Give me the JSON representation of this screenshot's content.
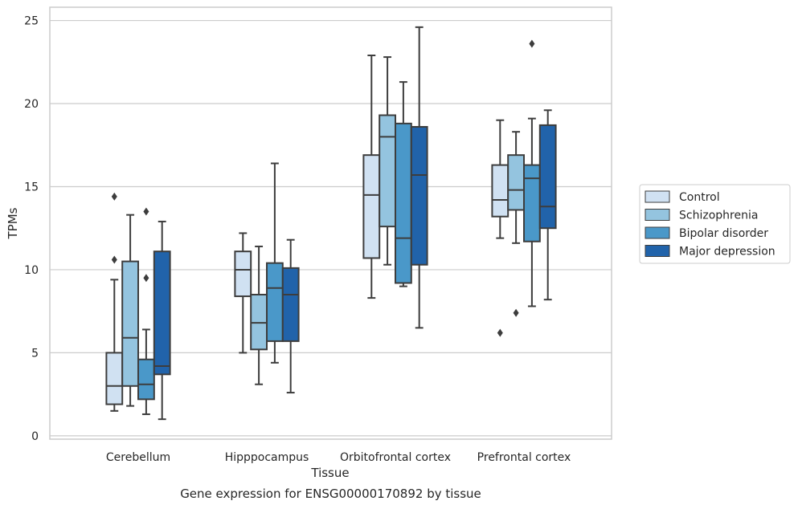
{
  "caption": "Gene expression for ENSG00000170892 by tissue",
  "chart_data": {
    "type": "box",
    "xlabel": "Tissue",
    "ylabel": "TPMs",
    "ylim": [
      -0.2,
      25.8
    ],
    "yticks": [
      0,
      5,
      10,
      15,
      20,
      25
    ],
    "grid": "horizontal",
    "legend": "right",
    "categories": [
      "Cerebellum",
      "Hipppocampus",
      "Orbitofrontal cortex",
      "Prefrontal cortex"
    ],
    "series": [
      {
        "name": "Control",
        "color": "#d0e1f2",
        "boxes": [
          {
            "whislo": 1.5,
            "q1": 1.9,
            "med": 3.0,
            "q3": 5.0,
            "whishi": 9.4,
            "fliers": [
              10.6,
              14.4
            ]
          },
          {
            "whislo": 5.0,
            "q1": 8.4,
            "med": 10.0,
            "q3": 11.1,
            "whishi": 12.2,
            "fliers": []
          },
          {
            "whislo": 8.3,
            "q1": 10.7,
            "med": 14.5,
            "q3": 16.9,
            "whishi": 22.9,
            "fliers": []
          },
          {
            "whislo": 11.9,
            "q1": 13.2,
            "med": 14.2,
            "q3": 16.3,
            "whishi": 19.0,
            "fliers": [
              6.2
            ]
          }
        ]
      },
      {
        "name": "Schizophrenia",
        "color": "#94c4df",
        "boxes": [
          {
            "whislo": 1.8,
            "q1": 3.0,
            "med": 5.9,
            "q3": 10.5,
            "whishi": 13.3,
            "fliers": []
          },
          {
            "whislo": 3.1,
            "q1": 5.2,
            "med": 6.8,
            "q3": 8.5,
            "whishi": 11.4,
            "fliers": []
          },
          {
            "whislo": 10.3,
            "q1": 12.6,
            "med": 18.0,
            "q3": 19.3,
            "whishi": 22.8,
            "fliers": []
          },
          {
            "whislo": 11.6,
            "q1": 13.6,
            "med": 14.8,
            "q3": 16.9,
            "whishi": 18.3,
            "fliers": [
              7.4
            ]
          }
        ]
      },
      {
        "name": "Bipolar disorder",
        "color": "#4a98c9",
        "boxes": [
          {
            "whislo": 1.3,
            "q1": 2.2,
            "med": 3.1,
            "q3": 4.6,
            "whishi": 6.4,
            "fliers": [
              9.5,
              13.5
            ]
          },
          {
            "whislo": 4.4,
            "q1": 5.7,
            "med": 8.9,
            "q3": 10.4,
            "whishi": 16.4,
            "fliers": []
          },
          {
            "whislo": 9.0,
            "q1": 9.2,
            "med": 11.9,
            "q3": 18.8,
            "whishi": 21.3,
            "fliers": []
          },
          {
            "whislo": 7.8,
            "q1": 11.7,
            "med": 15.5,
            "q3": 16.3,
            "whishi": 19.1,
            "fliers": [
              23.6
            ]
          }
        ]
      },
      {
        "name": "Major depression",
        "color": "#2163aa",
        "boxes": [
          {
            "whislo": 1.0,
            "q1": 3.7,
            "med": 4.2,
            "q3": 11.1,
            "whishi": 12.9,
            "fliers": []
          },
          {
            "whislo": 2.6,
            "q1": 5.7,
            "med": 8.5,
            "q3": 10.1,
            "whishi": 11.8,
            "fliers": []
          },
          {
            "whislo": 6.5,
            "q1": 10.3,
            "med": 15.7,
            "q3": 18.6,
            "whishi": 24.6,
            "fliers": []
          },
          {
            "whislo": 8.2,
            "q1": 12.5,
            "med": 13.8,
            "q3": 18.7,
            "whishi": 19.6,
            "fliers": []
          }
        ]
      }
    ]
  }
}
